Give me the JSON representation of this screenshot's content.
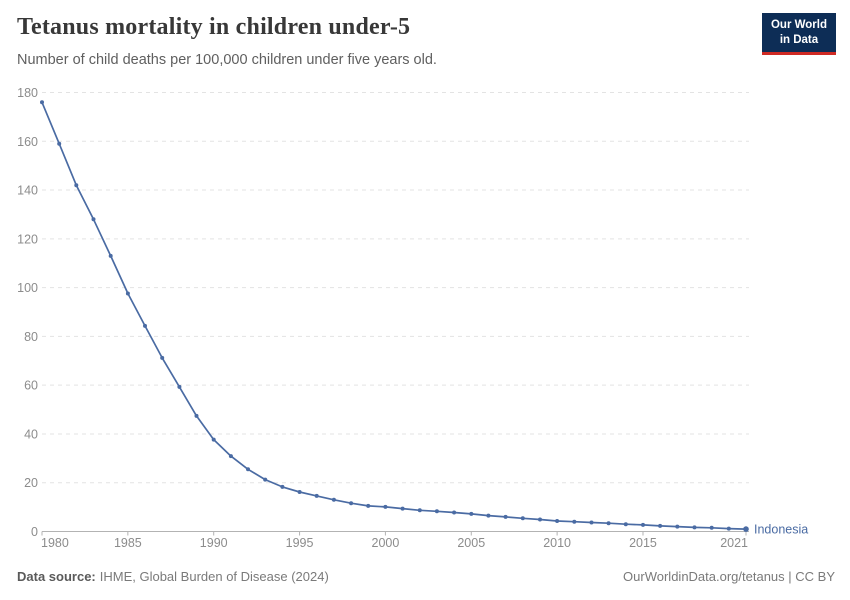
{
  "header": {
    "title": "Tetanus mortality in children under-5",
    "subtitle": "Number of child deaths per 100,000 children under five years old.",
    "logo": {
      "line1": "Our World",
      "line2": "in Data"
    }
  },
  "chart_data": {
    "type": "line",
    "title": "Tetanus mortality in children under-5",
    "subtitle": "Number of child deaths per 100,000 children under five years old.",
    "x": [
      1980,
      1981,
      1982,
      1983,
      1984,
      1985,
      1986,
      1987,
      1988,
      1989,
      1990,
      1991,
      1992,
      1993,
      1994,
      1995,
      1996,
      1997,
      1998,
      1999,
      2000,
      2001,
      2002,
      2003,
      2004,
      2005,
      2006,
      2007,
      2008,
      2009,
      2010,
      2011,
      2012,
      2013,
      2014,
      2015,
      2016,
      2017,
      2018,
      2019,
      2020,
      2021
    ],
    "series": [
      {
        "name": "Indonesia",
        "color": "#4a6ba3",
        "values": [
          176,
          159,
          142,
          128,
          113,
          97.6,
          84.3,
          71.2,
          59.3,
          47.4,
          37.7,
          30.9,
          25.5,
          21.3,
          18.3,
          16.2,
          14.6,
          13,
          11.6,
          10.5,
          10.1,
          9.4,
          8.7,
          8.3,
          7.8,
          7.2,
          6.5,
          6,
          5.4,
          4.9,
          4.3,
          4,
          3.7,
          3.4,
          3,
          2.7,
          2.3,
          2,
          1.7,
          1.5,
          1.2,
          1
        ]
      }
    ],
    "xlabel": "",
    "ylabel": "",
    "xlim": [
      1980,
      2021
    ],
    "ylim": [
      0,
      180
    ],
    "yticks": [
      0,
      20,
      40,
      60,
      80,
      100,
      120,
      140,
      160,
      180
    ],
    "xticks": [
      1980,
      1985,
      1990,
      1995,
      2000,
      2005,
      2010,
      2015,
      2021
    ],
    "grid": "horizontal-dashed",
    "legend": "end-of-line-label"
  },
  "footer": {
    "source_label": "Data source:",
    "source_value": "IHME, Global Burden of Disease (2024)",
    "credit": "OurWorldinData.org/tetanus | CC BY"
  },
  "colors": {
    "line": "#4a6ba3",
    "logo_bg": "#0d2d56",
    "logo_accent": "#cf2a24",
    "grid": "#e3e3e3",
    "axis": "#b3b3b3",
    "tick_label": "#8c8c8c"
  }
}
